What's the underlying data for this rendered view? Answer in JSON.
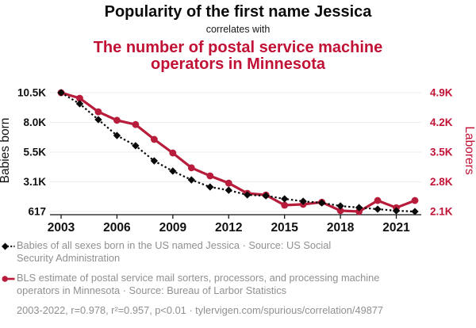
{
  "header": {
    "title": "Popularity of the first name Jessica",
    "connector": "correlates with",
    "red_title_lines": [
      "The number of postal service machine",
      "operators in Minnesota"
    ]
  },
  "colors": {
    "red_text": "#c11236",
    "red_line": "#b71c3a",
    "black_line": "#0a0a0a",
    "grid": "#ececec",
    "axis": "#141414",
    "legend_gray": "#909090"
  },
  "chart_data": {
    "type": "line",
    "title": "Popularity of the first name Jessica correlates with the number of postal service machine operators in Minnesota",
    "x": [
      2003,
      2004,
      2005,
      2006,
      2007,
      2008,
      2009,
      2010,
      2011,
      2012,
      2013,
      2014,
      2015,
      2016,
      2017,
      2018,
      2019,
      2020,
      2021,
      2022
    ],
    "x_ticks": [
      2003,
      2006,
      2009,
      2012,
      2015,
      2018,
      2021
    ],
    "grid": true,
    "legend_position": "bottom",
    "left_axis": {
      "label": "Babies born",
      "min": 617,
      "max": 10500,
      "tick_labels": [
        "10.5K",
        "8.0K",
        "5.5K",
        "3.1K",
        "617"
      ],
      "tick_values": [
        10500,
        8029,
        5559,
        3088,
        617
      ]
    },
    "right_axis": {
      "label": "Laborers",
      "min": 2100,
      "max": 4900,
      "tick_labels": [
        "4.9K",
        "4.2K",
        "3.5K",
        "2.8K",
        "2.1K"
      ],
      "tick_values": [
        4900,
        4200,
        3500,
        2800,
        2100
      ]
    },
    "series": [
      {
        "name": "Babies of all sexes born in the US named Jessica",
        "axis": "left",
        "style": "dotted",
        "marker": "diamond",
        "color": "#0a0a0a",
        "values": [
          10500,
          9580,
          8260,
          6940,
          6090,
          4830,
          3980,
          3250,
          2660,
          2390,
          2000,
          1930,
          1670,
          1470,
          1340,
          1080,
          945,
          815,
          680,
          617
        ]
      },
      {
        "name": "BLS estimate of postal service mail sorters, processors, and processing machine operators in Minnesota",
        "axis": "right",
        "style": "solid",
        "marker": "circle",
        "color": "#b71c3a",
        "values": [
          4900,
          4770,
          4450,
          4250,
          4150,
          3800,
          3480,
          3130,
          2940,
          2770,
          2530,
          2490,
          2250,
          2270,
          2320,
          2120,
          2100,
          2360,
          2190,
          2360
        ]
      }
    ]
  },
  "legend": {
    "entries": [
      {
        "marker": "diamond-dotted",
        "color": "#0a0a0a",
        "lines": [
          "Babies of all sexes born in the US named Jessica · Source: US Social",
          "Security Administration"
        ]
      },
      {
        "marker": "circle-solid",
        "color": "#b71c3a",
        "lines": [
          "BLS estimate of postal service mail sorters, processors, and processing machine",
          "operators in Minnesota · Source: Bureau of Larbor Statistics"
        ]
      }
    ],
    "footer": "2003-2022, r=0.978, r²=0.957, p<0.01 · tylervigen.com/spurious/correlation/49877"
  }
}
